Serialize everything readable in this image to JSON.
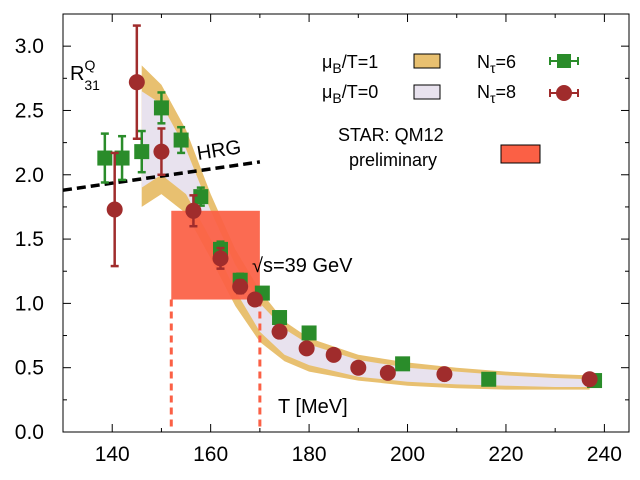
{
  "chart_data": {
    "type": "scatter",
    "xlabel": "T [MeV]",
    "ylabel_main": "R",
    "ylabel_sup": "Q",
    "ylabel_sub": "31",
    "xlim": [
      130,
      245
    ],
    "ylim": [
      0.0,
      3.25
    ],
    "xticks": [
      140,
      160,
      180,
      200,
      220,
      240
    ],
    "yticks": [
      0.0,
      0.5,
      1.0,
      1.5,
      2.0,
      2.5,
      3.0
    ],
    "xtick_labels": [
      "140",
      "160",
      "180",
      "200",
      "220",
      "240"
    ],
    "ytick_labels": [
      "0.0",
      "0.5",
      "1.0",
      "1.5",
      "2.0",
      "2.5",
      "3.0"
    ],
    "colors": {
      "band_mu1": "#e8c070",
      "band_mu0": "#e8e2ee",
      "ntau6": "#2a8c2a",
      "ntau8": "#a02c2c",
      "star": "#fb6045",
      "hrg": "#000000"
    },
    "legend": {
      "mu1_sym": "μ",
      "mu1_sub": "B",
      "mu1_rest": "/T=1",
      "mu0_sym": "μ",
      "mu0_sub": "B",
      "mu0_rest": "/T=0",
      "n6_main": "N",
      "n6_sub": "τ",
      "n6_rest": "=6",
      "n8_main": "N",
      "n8_sub": "τ",
      "n8_rest": "=8",
      "star_line1": "STAR: QM12",
      "star_line2": "preliminary"
    },
    "annotations": {
      "hrg": "HRG",
      "sqrt_symbol": "√",
      "sqrt_rest": "s=39 GeV"
    },
    "hrg_line": {
      "x": [
        130,
        170
      ],
      "y": [
        1.88,
        2.1
      ]
    },
    "star_box": {
      "x": [
        152,
        170
      ],
      "y": [
        1.03,
        1.72
      ]
    },
    "band_mu1": {
      "x": [
        146,
        150,
        155,
        160,
        165,
        170,
        175,
        180,
        190,
        200,
        210,
        220,
        230,
        237
      ],
      "lo": [
        1.75,
        1.85,
        1.7,
        1.35,
        0.98,
        0.7,
        0.55,
        0.47,
        0.4,
        0.36,
        0.34,
        0.33,
        0.33,
        0.33
      ],
      "hi": [
        2.85,
        2.7,
        2.35,
        1.85,
        1.42,
        1.1,
        0.86,
        0.73,
        0.6,
        0.54,
        0.5,
        0.47,
        0.45,
        0.44
      ]
    },
    "band_mu0": {
      "x": [
        146,
        150,
        155,
        160,
        165,
        170,
        175,
        180,
        190,
        200,
        210,
        220,
        230,
        237
      ],
      "lo": [
        1.9,
        2.0,
        1.85,
        1.5,
        1.1,
        0.78,
        0.6,
        0.52,
        0.43,
        0.39,
        0.37,
        0.36,
        0.35,
        0.35
      ],
      "hi": [
        2.65,
        2.55,
        2.2,
        1.72,
        1.3,
        1.0,
        0.8,
        0.68,
        0.56,
        0.5,
        0.47,
        0.44,
        0.42,
        0.41
      ]
    },
    "series": [
      {
        "name": "Nτ=6",
        "marker": "square",
        "x": [
          138.5,
          142,
          146,
          150,
          154,
          158,
          162,
          166,
          170.5,
          174,
          180,
          199,
          216.5,
          238
        ],
        "y": [
          2.13,
          2.13,
          2.18,
          2.52,
          2.27,
          1.83,
          1.42,
          1.18,
          1.08,
          0.89,
          0.77,
          0.53,
          0.41,
          0.4
        ],
        "yerr": [
          0.19,
          0.17,
          0.16,
          0.12,
          0.1,
          0.07,
          0.06,
          0.05,
          0.04,
          0.04,
          0.03,
          0.03,
          0.02,
          0.02
        ]
      },
      {
        "name": "Nτ=8",
        "marker": "circle",
        "x": [
          140.5,
          145,
          150,
          156.5,
          162,
          166,
          169,
          174,
          179.5,
          185,
          190,
          196,
          207.5,
          237
        ],
        "y": [
          1.73,
          2.72,
          2.18,
          1.72,
          1.35,
          1.13,
          1.03,
          0.78,
          0.65,
          0.6,
          0.5,
          0.46,
          0.45,
          0.41
        ],
        "yerr": [
          0.44,
          0.44,
          0.18,
          0.12,
          0.08,
          0.05,
          0.04,
          0.03,
          0.03,
          0.03,
          0.02,
          0.02,
          0.02,
          0.02
        ]
      }
    ]
  }
}
